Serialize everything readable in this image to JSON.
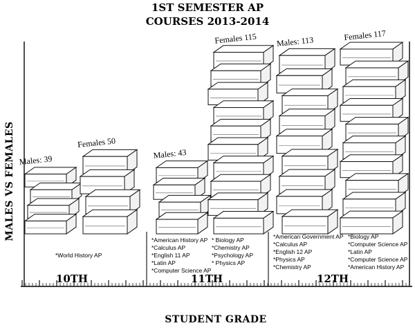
{
  "chart_data": {
    "type": "bar",
    "title": [
      "1ST SEMESTER AP",
      "COURSES 2013-2014"
    ],
    "xlabel": "STUDENT GRADE",
    "ylabel": "MALES VS FEMALES",
    "categories": [
      "10TH",
      "11TH",
      "12TH"
    ],
    "series": [
      {
        "key": "males",
        "values": [
          39,
          43,
          113
        ],
        "labels": [
          "Males: 39",
          "Males: 43",
          "Males: 113"
        ]
      },
      {
        "key": "females",
        "values": [
          50,
          115,
          117
        ],
        "labels": [
          "Females 50",
          "Females 115",
          "Females 117"
        ]
      }
    ],
    "courses": [
      {
        "grade": "10TH",
        "columns": [
          [
            "*World History AP"
          ]
        ]
      },
      {
        "grade": "11TH",
        "columns": [
          [
            "*American History AP",
            "*Calculus AP",
            "*English 11 AP",
            "*Latin AP",
            "*Computer Science AP"
          ],
          [
            "* Biology AP",
            "*Chemistry AP",
            "*Psychology AP",
            "* Physics AP"
          ]
        ]
      },
      {
        "grade": "12TH",
        "columns": [
          [
            "*American Government AP",
            " *Calculus AP",
            "*English 12 AP",
            " *Physics AP",
            "*Chemistry AP"
          ],
          [
            "*Biology AP",
            "*Computer Science AP",
            "*Latin AP",
            "*Computer Science AP",
            " *American History AP"
          ]
        ]
      }
    ]
  }
}
